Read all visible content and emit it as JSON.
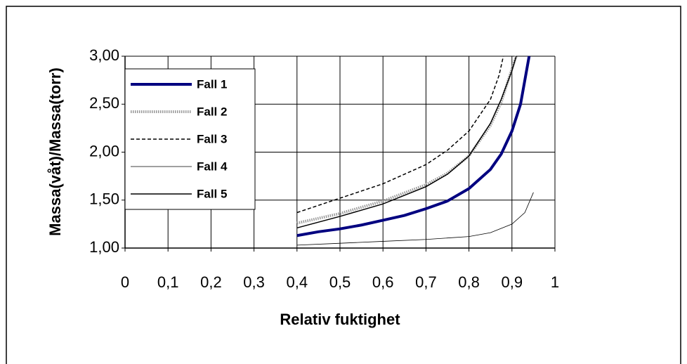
{
  "chart_data": {
    "type": "line",
    "xlabel": "Relativ fuktighet",
    "ylabel": "Massa(våt)/Massa(torr)",
    "xlim": [
      0,
      1
    ],
    "xticks": [
      0,
      {
        "value": 0.1,
        "label": "0,1"
      },
      {
        "value": 0.2,
        "label": "0,2"
      },
      {
        "value": 0.3,
        "label": "0,3"
      },
      {
        "value": 0.4,
        "label": "0,4"
      },
      {
        "value": 0.5,
        "label": "0,5"
      },
      {
        "value": 0.6,
        "label": "0,6"
      },
      {
        "value": 0.7,
        "label": "0,7"
      },
      {
        "value": 0.8,
        "label": "0,8"
      },
      {
        "value": 0.9,
        "label": "0,9"
      },
      1
    ],
    "ylim": [
      1,
      3
    ],
    "yticks": [
      {
        "value": 1,
        "label": "1,00"
      },
      {
        "value": 1.5,
        "label": "1,50"
      },
      {
        "value": 2,
        "label": "2,00"
      },
      {
        "value": 2.5,
        "label": "2,50"
      },
      {
        "value": 3,
        "label": "3,00"
      }
    ],
    "grid": true,
    "legend": "upper left",
    "series": [
      {
        "name": "Fall 1",
        "color": "#000080",
        "width": 4,
        "dash": "solid",
        "x": [
          0.4,
          0.45,
          0.5,
          0.55,
          0.6,
          0.65,
          0.7,
          0.75,
          0.8,
          0.85,
          0.875,
          0.9,
          0.92,
          0.93,
          0.94
        ],
        "values": [
          1.13,
          1.17,
          1.2,
          1.24,
          1.29,
          1.34,
          1.41,
          1.49,
          1.62,
          1.82,
          1.98,
          2.22,
          2.5,
          2.75,
          3.0
        ]
      },
      {
        "name": "Fall 2",
        "color": "#999999",
        "width": 4,
        "dash": "dotted",
        "x": [
          0.4,
          0.5,
          0.6,
          0.7,
          0.75,
          0.8,
          0.85,
          0.875,
          0.9,
          0.91
        ],
        "values": [
          1.26,
          1.36,
          1.49,
          1.66,
          1.78,
          1.96,
          2.28,
          2.52,
          2.87,
          3.0
        ]
      },
      {
        "name": "Fall 3",
        "color": "#000000",
        "width": 1.5,
        "dash": "dashed",
        "x": [
          0.4,
          0.5,
          0.6,
          0.7,
          0.75,
          0.8,
          0.85,
          0.87,
          0.88
        ],
        "values": [
          1.37,
          1.52,
          1.67,
          1.87,
          2.02,
          2.22,
          2.55,
          2.8,
          3.0
        ]
      },
      {
        "name": "Fall 4",
        "color": "#000000",
        "width": 0.8,
        "dash": "solid",
        "x": [
          0.4,
          0.5,
          0.6,
          0.7,
          0.8,
          0.85,
          0.9,
          0.93,
          0.95
        ],
        "values": [
          1.03,
          1.05,
          1.07,
          1.09,
          1.12,
          1.16,
          1.25,
          1.37,
          1.58
        ]
      },
      {
        "name": "Fall 5",
        "color": "#000000",
        "width": 1.5,
        "dash": "solid",
        "x": [
          0.4,
          0.5,
          0.6,
          0.7,
          0.75,
          0.8,
          0.85,
          0.875,
          0.9,
          0.91
        ],
        "values": [
          1.21,
          1.33,
          1.46,
          1.64,
          1.77,
          1.96,
          2.3,
          2.55,
          2.85,
          3.0
        ]
      }
    ]
  }
}
